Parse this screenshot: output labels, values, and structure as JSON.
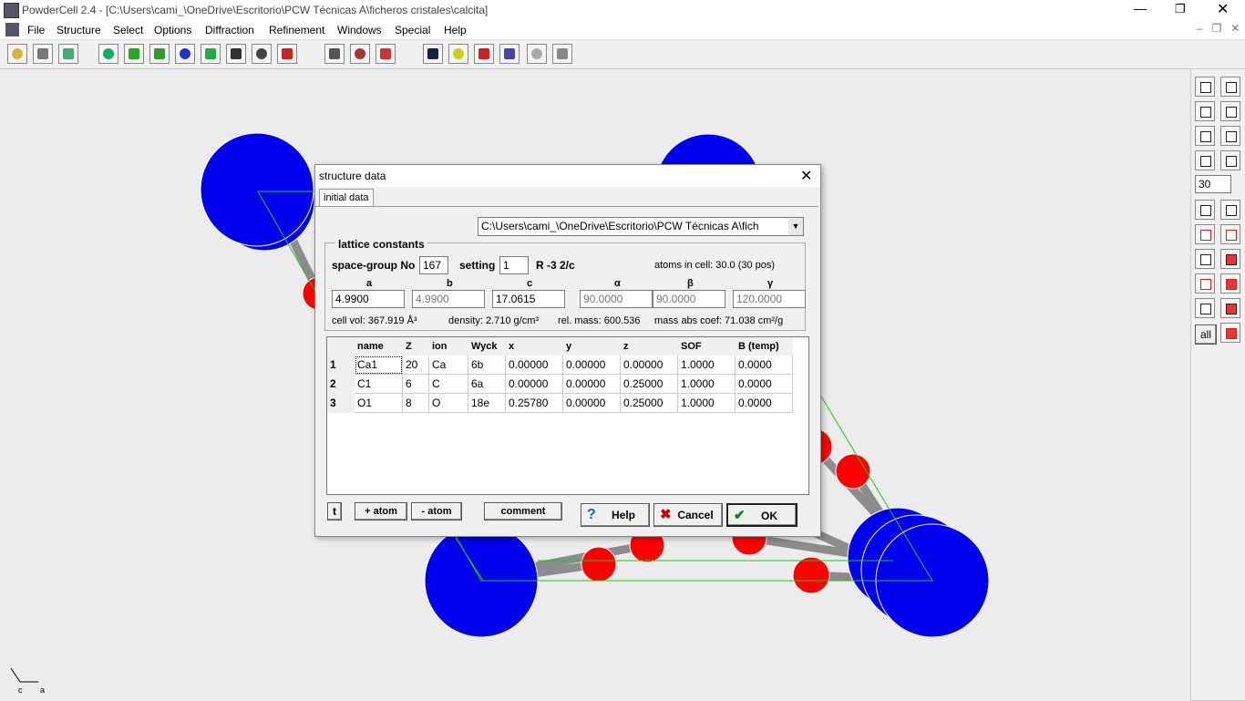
{
  "window": {
    "title": "PowderCell 2.4 - [C:\\Users\\cami_\\OneDrive\\Escritorio\\PCW Técnicas A\\ficheros cristales\\calcita]",
    "menu": [
      "File",
      "Structure",
      "Select",
      "Options",
      "Diffraction",
      "Refinement",
      "Windows",
      "Special",
      "Help"
    ]
  },
  "dialog": {
    "title": "structure data",
    "tab": "initial data",
    "file_path": "C:\\Users\\cami_\\OneDrive\\Escritorio\\PCW Técnicas A\\fich",
    "lattice": {
      "group_label": "lattice constants",
      "space_group_label": "space-group No",
      "space_group": "167",
      "setting_label": "setting",
      "setting": "1",
      "symbol": "R -3 2/c",
      "atoms_in_cell": "atoms in cell: 30.0  (30 pos)",
      "param_labels": [
        "a",
        "b",
        "c",
        "α",
        "β",
        "γ"
      ],
      "param_values": [
        "4.9900",
        "4.9900",
        "17.0615",
        "90.0000",
        "90.0000",
        "120.0000"
      ],
      "cell_vol": "cell vol: 367.919 Å³",
      "density": "density: 2.710 g/cm³",
      "rel_mass": "rel. mass: 600.536",
      "mass_abs_coef": "mass abs coef: 71.038 cm²/g"
    },
    "table": {
      "headers": [
        "name",
        "Z",
        "ion",
        "Wyck",
        "x",
        "y",
        "z",
        "SOF",
        "B (temp)"
      ],
      "rows": [
        [
          "1",
          "Ca1",
          "20",
          "Ca",
          "6b",
          "0.00000",
          "0.00000",
          "0.00000",
          "1.0000",
          "0.0000"
        ],
        [
          "2",
          "C1",
          "6",
          "C",
          "6a",
          "0.00000",
          "0.00000",
          "0.25000",
          "1.0000",
          "0.0000"
        ],
        [
          "3",
          "O1",
          "8",
          "O",
          "18e",
          "0.25780",
          "0.00000",
          "0.25000",
          "1.0000",
          "0.0000"
        ]
      ]
    },
    "buttons": {
      "add_atom": "+ atom",
      "remove_atom": "- atom",
      "comment": "comment",
      "help": "Help",
      "cancel": "Cancel",
      "ok": "OK"
    }
  },
  "side_toolbar": {
    "angle": "30",
    "all": "all"
  },
  "axes": {
    "c": "c",
    "a": "a"
  }
}
